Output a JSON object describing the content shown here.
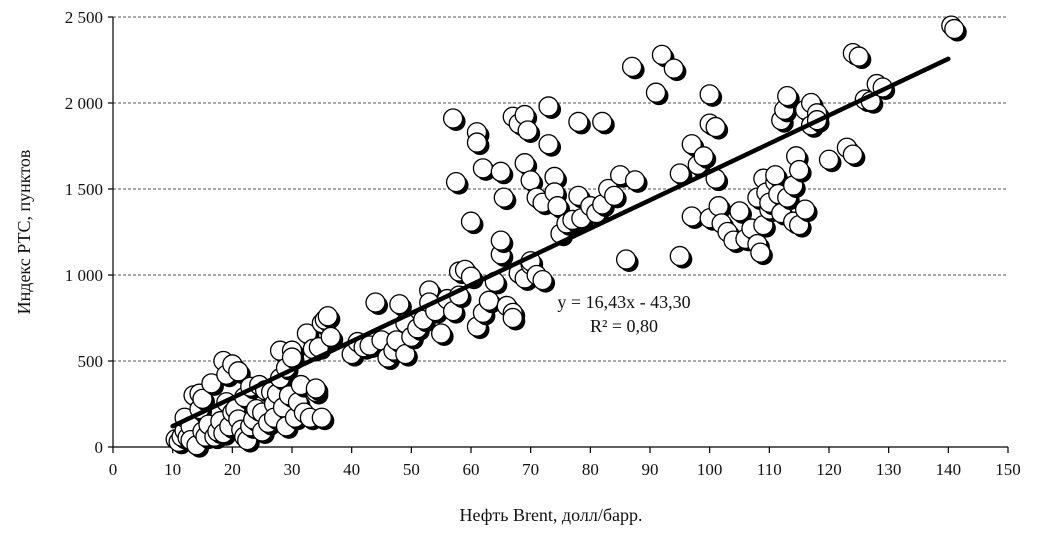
{
  "chart_data": {
    "type": "scatter",
    "title": "",
    "xlabel": "Нефть Brent, долл/барр.",
    "ylabel": "Индекс РТС, пунктов",
    "xlim": [
      0,
      150
    ],
    "ylim": [
      0,
      2500
    ],
    "x_ticks": [
      "0",
      "10",
      "20",
      "30",
      "40",
      "50",
      "60",
      "70",
      "80",
      "90",
      "100",
      "110",
      "120",
      "130",
      "140",
      "150"
    ],
    "y_ticks": [
      "0",
      "500",
      "1 000",
      "1 500",
      "2 000",
      "2 500"
    ],
    "grid": "horizontal dashed",
    "legend": "none",
    "trendline": {
      "equation": "y = 16,43x - 43,30",
      "r_squared": "R² = 0,80",
      "slope": 16.43,
      "intercept": -43.3,
      "x_range": [
        10,
        140
      ]
    },
    "points": [
      [
        10.5,
        45
      ],
      [
        11,
        30
      ],
      [
        11.5,
        60
      ],
      [
        12,
        95
      ],
      [
        12,
        170
      ],
      [
        12.5,
        55
      ],
      [
        13,
        120
      ],
      [
        13,
        40
      ],
      [
        13.5,
        300
      ],
      [
        14,
        10
      ],
      [
        14.5,
        220
      ],
      [
        14.5,
        310
      ],
      [
        15,
        280
      ],
      [
        15,
        90
      ],
      [
        15.5,
        60
      ],
      [
        16,
        130
      ],
      [
        16.5,
        370
      ],
      [
        17,
        60
      ],
      [
        17.5,
        90
      ],
      [
        18,
        150
      ],
      [
        18.5,
        80
      ],
      [
        18.5,
        500
      ],
      [
        19,
        420
      ],
      [
        19,
        260
      ],
      [
        19.5,
        120
      ],
      [
        20,
        200
      ],
      [
        20,
        480
      ],
      [
        20.5,
        220
      ],
      [
        21,
        160
      ],
      [
        21,
        440
      ],
      [
        21.5,
        100
      ],
      [
        22,
        290
      ],
      [
        22,
        60
      ],
      [
        22.5,
        40
      ],
      [
        23,
        120
      ],
      [
        23,
        350
      ],
      [
        23.5,
        160
      ],
      [
        24,
        220
      ],
      [
        24.5,
        360
      ],
      [
        25,
        90
      ],
      [
        25,
        200
      ],
      [
        25.5,
        330
      ],
      [
        26,
        140
      ],
      [
        26.5,
        320
      ],
      [
        27,
        250
      ],
      [
        27,
        170
      ],
      [
        27.5,
        310
      ],
      [
        28,
        560
      ],
      [
        28,
        400
      ],
      [
        28.5,
        230
      ],
      [
        29,
        120
      ],
      [
        29,
        460
      ],
      [
        29.5,
        300
      ],
      [
        30,
        560
      ],
      [
        30,
        520
      ],
      [
        30.5,
        170
      ],
      [
        31,
        260
      ],
      [
        31.5,
        360
      ],
      [
        32,
        200
      ],
      [
        32.5,
        660
      ],
      [
        33,
        170
      ],
      [
        33.5,
        570
      ],
      [
        34,
        320
      ],
      [
        34,
        340
      ],
      [
        34.5,
        580
      ],
      [
        35,
        720
      ],
      [
        35,
        170
      ],
      [
        35.5,
        740
      ],
      [
        36,
        760
      ],
      [
        36.5,
        640
      ],
      [
        40,
        540
      ],
      [
        41,
        610
      ],
      [
        42,
        580
      ],
      [
        43,
        590
      ],
      [
        44,
        840
      ],
      [
        45,
        620
      ],
      [
        46,
        520
      ],
      [
        47,
        560
      ],
      [
        47.5,
        620
      ],
      [
        48,
        830
      ],
      [
        49,
        720
      ],
      [
        49,
        540
      ],
      [
        50,
        640
      ],
      [
        51,
        690
      ],
      [
        52,
        740
      ],
      [
        53,
        910
      ],
      [
        53,
        840
      ],
      [
        54,
        790
      ],
      [
        55,
        660
      ],
      [
        56,
        860
      ],
      [
        57,
        790
      ],
      [
        58,
        880
      ],
      [
        58,
        1020
      ],
      [
        59,
        1030
      ],
      [
        60,
        990
      ],
      [
        60,
        1310
      ],
      [
        61,
        700
      ],
      [
        62,
        780
      ],
      [
        63,
        850
      ],
      [
        64,
        960
      ],
      [
        65,
        1120
      ],
      [
        65,
        1200
      ],
      [
        66,
        820
      ],
      [
        67,
        780
      ],
      [
        67,
        750
      ],
      [
        68,
        1010
      ],
      [
        69,
        980
      ],
      [
        70,
        1060
      ],
      [
        70,
        1080
      ],
      [
        71,
        1000
      ],
      [
        72,
        970
      ],
      [
        57,
        1910
      ],
      [
        57.5,
        1540
      ],
      [
        61,
        1830
      ],
      [
        61,
        1770
      ],
      [
        62,
        1620
      ],
      [
        65,
        1600
      ],
      [
        65.5,
        1450
      ],
      [
        67,
        1920
      ],
      [
        68,
        1880
      ],
      [
        69,
        1930
      ],
      [
        69,
        1650
      ],
      [
        69.5,
        1840
      ],
      [
        70,
        1550
      ],
      [
        71,
        1450
      ],
      [
        72,
        1420
      ],
      [
        73,
        1980
      ],
      [
        73,
        1760
      ],
      [
        74,
        1570
      ],
      [
        74,
        1480
      ],
      [
        74.5,
        1400
      ],
      [
        75,
        1240
      ],
      [
        76,
        1300
      ],
      [
        77,
        1320
      ],
      [
        78,
        1890
      ],
      [
        78,
        1460
      ],
      [
        78.5,
        1330
      ],
      [
        80,
        1400
      ],
      [
        81,
        1360
      ],
      [
        82,
        1890
      ],
      [
        82,
        1410
      ],
      [
        83,
        1500
      ],
      [
        84,
        1460
      ],
      [
        85,
        1580
      ],
      [
        86,
        1090
      ],
      [
        87,
        2210
      ],
      [
        87.5,
        1550
      ],
      [
        91,
        2060
      ],
      [
        92,
        2280
      ],
      [
        94,
        2200
      ],
      [
        95,
        1110
      ],
      [
        95,
        1590
      ],
      [
        97,
        1760
      ],
      [
        97,
        1340
      ],
      [
        98,
        1640
      ],
      [
        99,
        1690
      ],
      [
        100,
        2050
      ],
      [
        100,
        1880
      ],
      [
        100,
        1330
      ],
      [
        101,
        1860
      ],
      [
        101,
        1560
      ],
      [
        101.5,
        1400
      ],
      [
        102,
        1300
      ],
      [
        103,
        1250
      ],
      [
        104,
        1200
      ],
      [
        105,
        1370
      ],
      [
        106,
        1210
      ],
      [
        107,
        1270
      ],
      [
        108,
        1180
      ],
      [
        108,
        1450
      ],
      [
        108.5,
        1130
      ],
      [
        109,
        1290
      ],
      [
        109,
        1560
      ],
      [
        109.5,
        1480
      ],
      [
        110,
        1380
      ],
      [
        110,
        1420
      ],
      [
        111,
        1540
      ],
      [
        111,
        1580
      ],
      [
        111.5,
        1470
      ],
      [
        112,
        1360
      ],
      [
        112,
        1900
      ],
      [
        112.5,
        1960
      ],
      [
        113,
        2040
      ],
      [
        113,
        1450
      ],
      [
        114,
        1520
      ],
      [
        114,
        1310
      ],
      [
        114.5,
        1690
      ],
      [
        115,
        1610
      ],
      [
        115,
        1290
      ],
      [
        116,
        1380
      ],
      [
        116,
        1960
      ],
      [
        117,
        2000
      ],
      [
        117,
        1870
      ],
      [
        118,
        1940
      ],
      [
        118,
        1900
      ],
      [
        120,
        1670
      ],
      [
        123,
        1740
      ],
      [
        124,
        1700
      ],
      [
        124,
        2290
      ],
      [
        125,
        2270
      ],
      [
        126,
        2020
      ],
      [
        127,
        2010
      ],
      [
        128,
        2110
      ],
      [
        129,
        2090
      ],
      [
        140.5,
        2450
      ],
      [
        141,
        2430
      ]
    ]
  }
}
